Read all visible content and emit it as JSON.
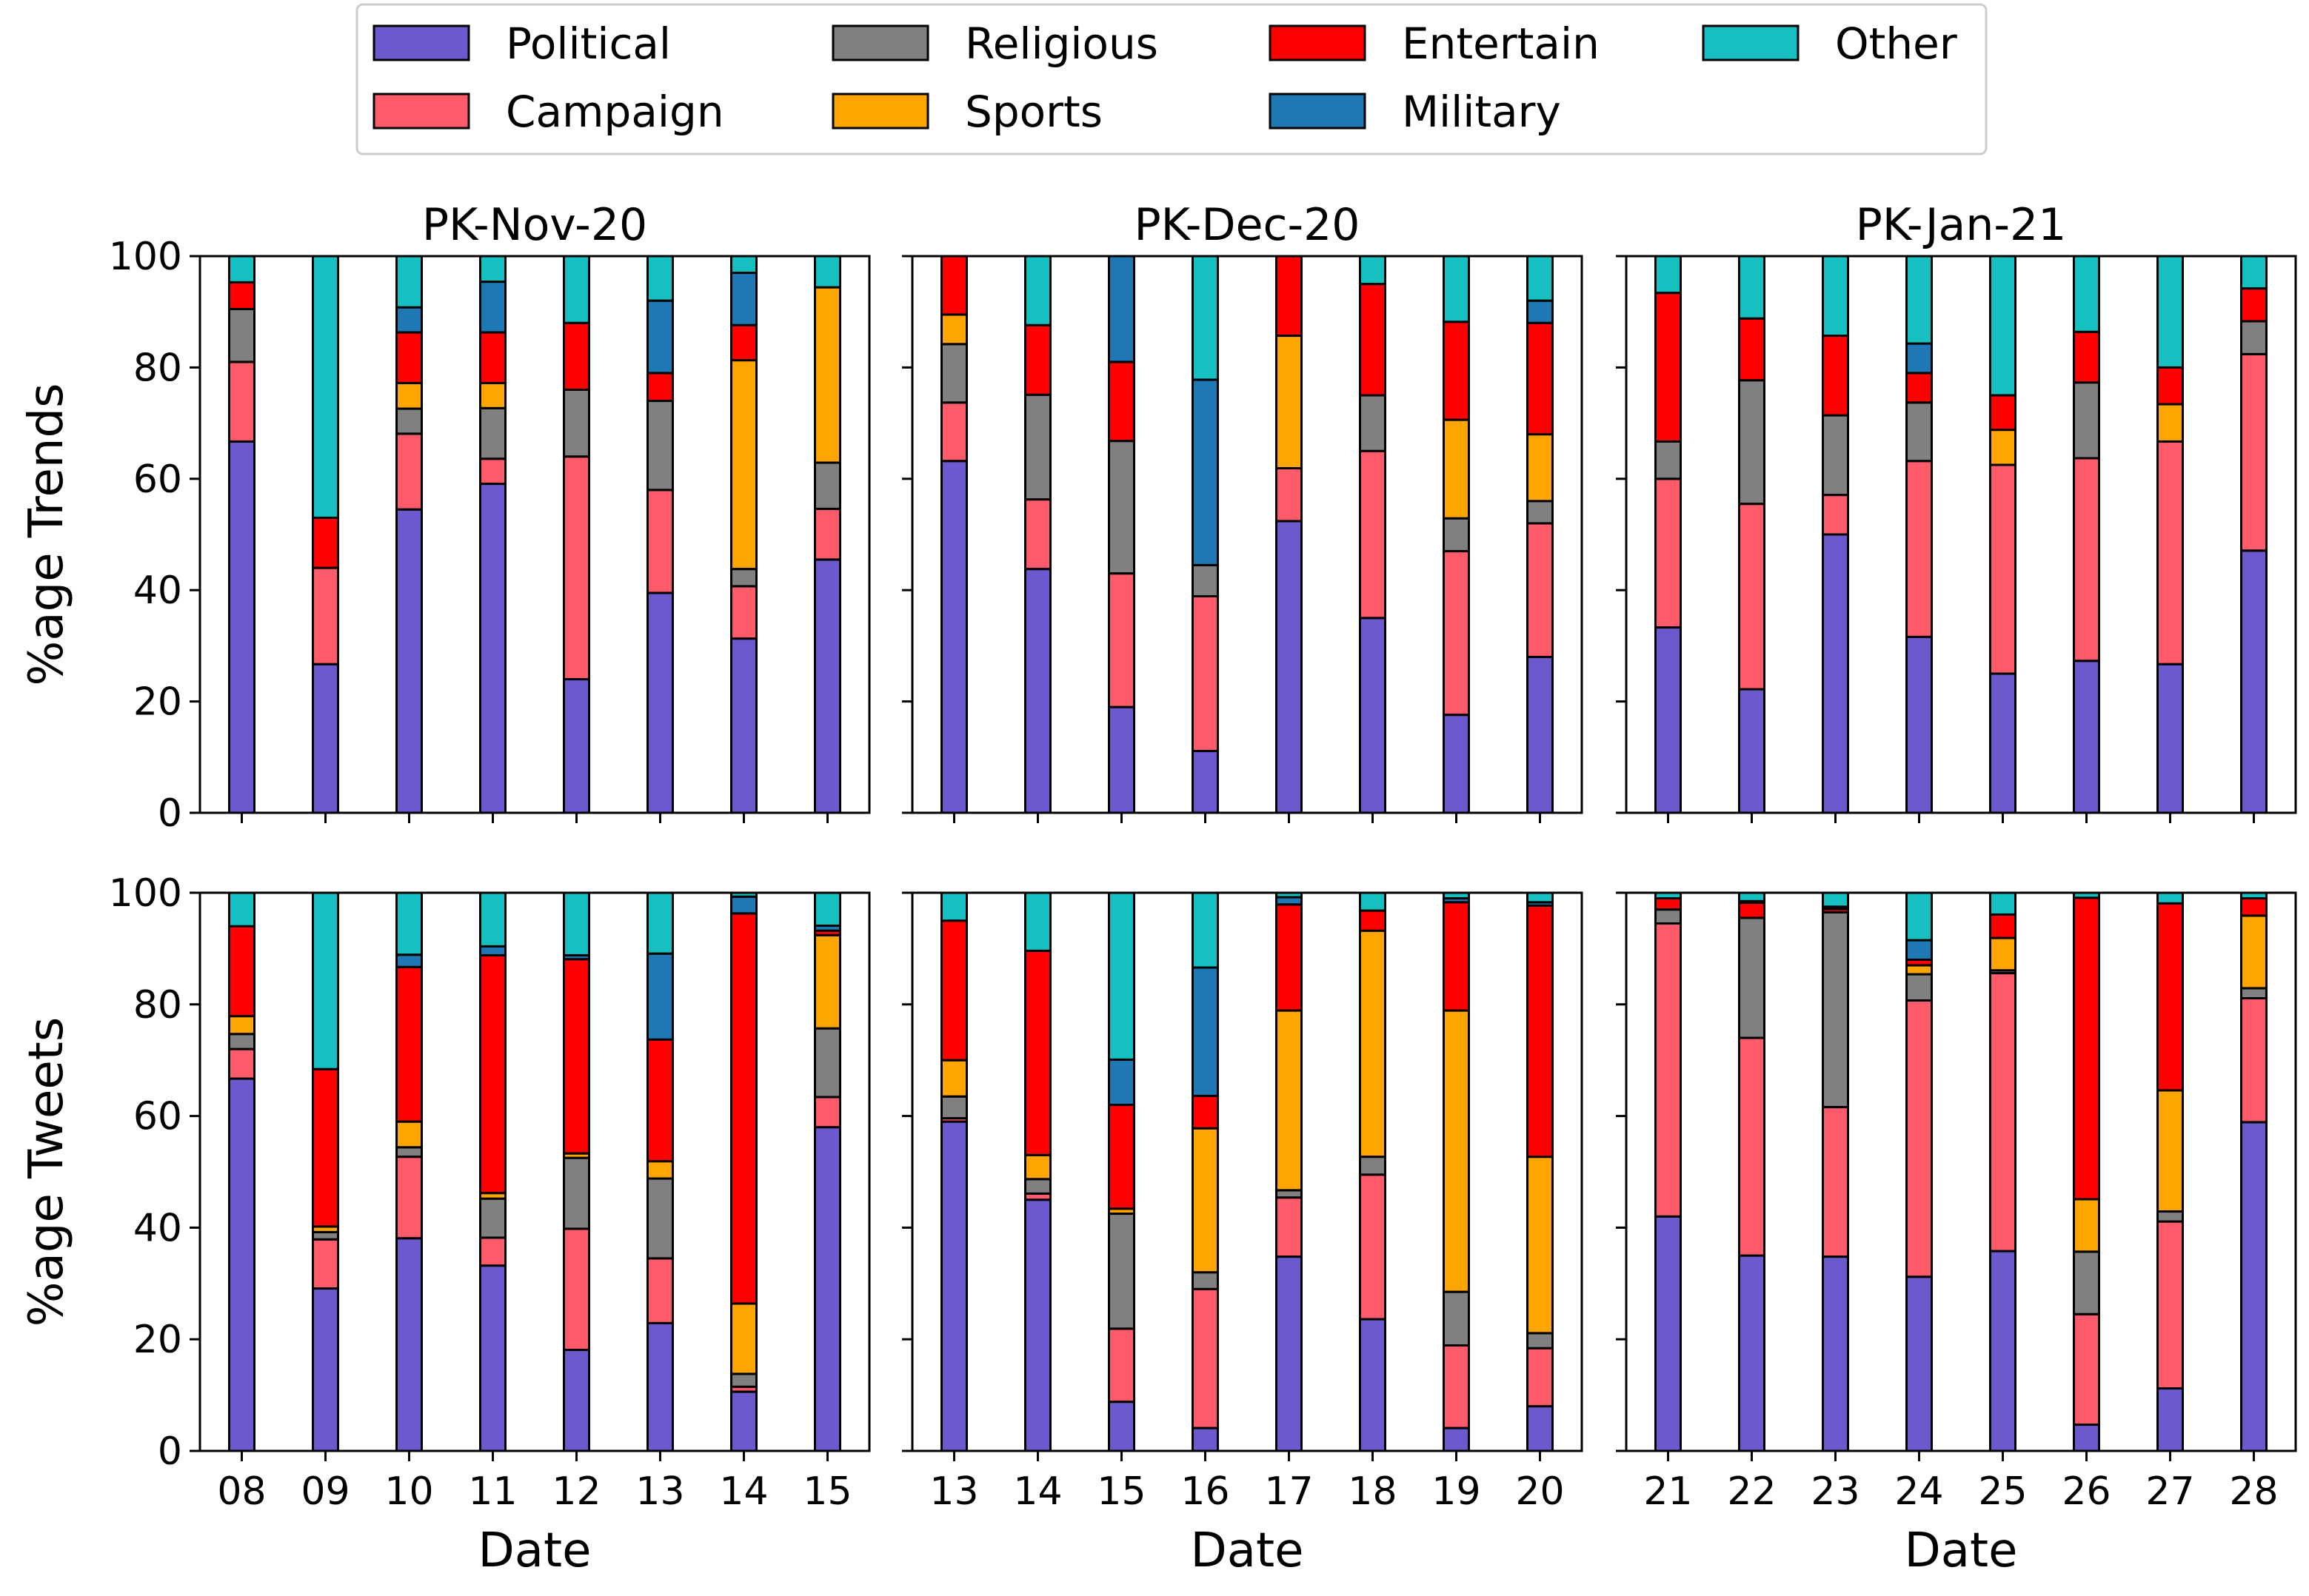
{
  "chart_data": {
    "type": "bar",
    "stacked": true,
    "legend": {
      "placement": "top",
      "entries": [
        {
          "name": "Political",
          "color": "#6a5acd"
        },
        {
          "name": "Campaign",
          "color": "#ff5b6b"
        },
        {
          "name": "Religious",
          "color": "#808080"
        },
        {
          "name": "Sports",
          "color": "#ffa500"
        },
        {
          "name": "Entertain",
          "color": "#ff0000"
        },
        {
          "name": "Military",
          "color": "#1f77b4"
        },
        {
          "name": "Other",
          "color": "#17c0c0"
        }
      ]
    },
    "columns": [
      {
        "title": "PK-Nov-20",
        "categories": [
          "08",
          "09",
          "10",
          "11",
          "12",
          "13",
          "14",
          "15"
        ]
      },
      {
        "title": "PK-Dec-20",
        "categories": [
          "13",
          "14",
          "15",
          "16",
          "17",
          "18",
          "19",
          "20"
        ]
      },
      {
        "title": "PK-Jan-21",
        "categories": [
          "21",
          "22",
          "23",
          "24",
          "25",
          "26",
          "27",
          "28"
        ]
      }
    ],
    "rows": [
      {
        "ylabel": "%age Trends"
      },
      {
        "ylabel": "%age Tweets"
      }
    ],
    "xlabel": "Date",
    "ylim": [
      0,
      100
    ],
    "yticks": [
      0,
      20,
      40,
      60,
      80,
      100
    ],
    "grid": false,
    "panels": [
      {
        "row": 0,
        "col": 0,
        "stacks": [
          [
            66.7,
            14.3,
            9.5,
            0,
            4.8,
            0,
            4.7
          ],
          [
            26.7,
            17.3,
            0,
            0,
            9.0,
            0,
            47.0
          ],
          [
            54.5,
            13.6,
            4.5,
            4.6,
            9.1,
            4.5,
            9.2
          ],
          [
            59.1,
            4.5,
            9.1,
            4.5,
            9.1,
            9.1,
            4.6
          ],
          [
            24.0,
            40.0,
            12.0,
            0,
            12.0,
            0,
            12.0
          ],
          [
            39.5,
            18.5,
            16.0,
            0,
            5.0,
            13.0,
            8.0
          ],
          [
            31.3,
            9.4,
            3.1,
            37.5,
            6.3,
            9.4,
            3.0
          ],
          [
            45.5,
            9.1,
            8.3,
            31.5,
            0,
            0,
            5.6
          ]
        ]
      },
      {
        "row": 0,
        "col": 1,
        "stacks": [
          [
            63.2,
            10.5,
            10.5,
            5.3,
            10.5,
            0,
            0
          ],
          [
            43.8,
            12.5,
            18.8,
            0,
            12.5,
            0,
            12.4
          ],
          [
            19.0,
            24.0,
            23.8,
            0,
            14.2,
            19.0,
            0
          ],
          [
            11.1,
            27.8,
            5.6,
            0,
            0,
            33.3,
            22.2
          ],
          [
            52.4,
            9.5,
            0,
            23.8,
            14.3,
            0,
            0
          ],
          [
            35.0,
            30.0,
            10.0,
            0,
            20.0,
            0,
            5.0
          ],
          [
            17.6,
            29.4,
            5.9,
            17.7,
            17.6,
            0,
            11.8
          ],
          [
            28.0,
            24.0,
            4.0,
            12.0,
            20.0,
            4.0,
            8.0
          ]
        ]
      },
      {
        "row": 0,
        "col": 2,
        "stacks": [
          [
            33.3,
            26.7,
            6.7,
            0,
            26.7,
            0,
            6.6
          ],
          [
            22.2,
            33.3,
            22.2,
            0,
            11.1,
            0,
            11.2
          ],
          [
            50.0,
            7.1,
            14.3,
            0,
            14.3,
            0,
            14.3
          ],
          [
            31.6,
            31.6,
            10.5,
            0,
            5.3,
            5.3,
            15.7
          ],
          [
            25.0,
            37.5,
            0,
            6.3,
            6.2,
            0,
            25.0
          ],
          [
            27.3,
            36.4,
            13.6,
            0,
            9.1,
            0,
            13.6
          ],
          [
            26.7,
            40.0,
            0,
            6.7,
            6.6,
            0,
            20.0
          ],
          [
            47.1,
            35.3,
            5.9,
            0,
            5.9,
            0,
            5.8
          ]
        ]
      },
      {
        "row": 1,
        "col": 0,
        "stacks": [
          [
            66.7,
            5.3,
            2.7,
            3.2,
            16.1,
            0,
            6.0
          ],
          [
            29.1,
            8.8,
            1.3,
            1.0,
            28.2,
            0,
            31.6
          ],
          [
            38.1,
            14.6,
            1.7,
            4.6,
            27.7,
            2.2,
            11.1
          ],
          [
            33.2,
            5.0,
            7.0,
            1.0,
            42.6,
            1.6,
            9.6
          ],
          [
            18.1,
            21.7,
            12.7,
            0.8,
            34.8,
            0.7,
            11.2
          ],
          [
            22.9,
            11.6,
            14.3,
            3.1,
            21.8,
            15.4,
            10.9
          ],
          [
            10.6,
            0.9,
            2.3,
            12.6,
            69.9,
            3.0,
            0.7
          ],
          [
            58.0,
            5.4,
            12.3,
            16.7,
            0.8,
            0.9,
            5.9
          ]
        ]
      },
      {
        "row": 1,
        "col": 1,
        "stacks": [
          [
            59.0,
            0.6,
            3.9,
            6.5,
            25.0,
            0,
            5.0
          ],
          [
            45.0,
            1.1,
            2.6,
            4.3,
            36.6,
            0,
            10.4
          ],
          [
            8.8,
            13.1,
            20.6,
            0.9,
            18.6,
            8.1,
            29.9
          ],
          [
            4.1,
            24.9,
            3.0,
            25.8,
            5.8,
            23.0,
            13.4
          ],
          [
            34.8,
            10.6,
            1.3,
            32.2,
            19.0,
            1.3,
            0.8
          ],
          [
            23.6,
            25.9,
            3.2,
            40.5,
            3.6,
            0,
            3.2
          ],
          [
            4.1,
            14.8,
            9.6,
            50.4,
            19.4,
            0.7,
            1.0
          ],
          [
            8.0,
            10.4,
            2.7,
            31.6,
            45.0,
            0.6,
            1.7
          ]
        ]
      },
      {
        "row": 1,
        "col": 2,
        "stacks": [
          [
            42.0,
            52.5,
            2.5,
            0,
            2.0,
            0,
            1.0
          ],
          [
            35.0,
            39.0,
            21.5,
            0,
            2.7,
            0.3,
            1.5
          ],
          [
            34.8,
            26.8,
            34.9,
            0,
            0.6,
            0.4,
            2.5
          ],
          [
            31.2,
            49.5,
            4.7,
            1.6,
            1.0,
            3.5,
            8.5
          ],
          [
            35.8,
            49.8,
            0.5,
            5.8,
            4.2,
            0,
            3.9
          ],
          [
            4.7,
            19.8,
            11.2,
            9.4,
            54.0,
            0,
            0.9
          ],
          [
            11.2,
            29.9,
            1.8,
            21.7,
            33.5,
            0,
            1.9
          ],
          [
            58.9,
            22.2,
            1.8,
            13.0,
            3.1,
            0,
            1.0
          ]
        ]
      }
    ]
  }
}
